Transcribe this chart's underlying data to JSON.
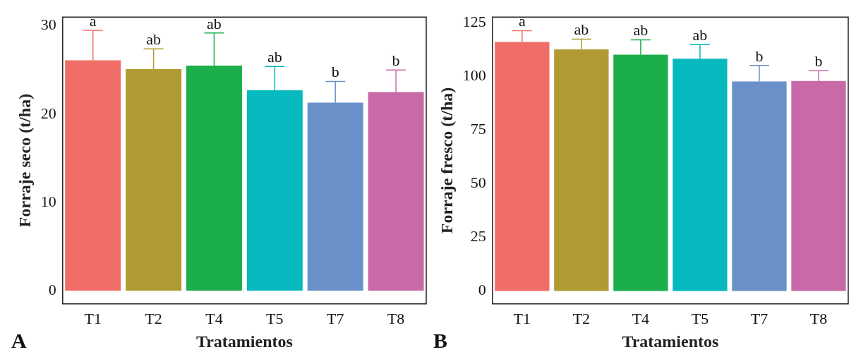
{
  "chart_data": [
    {
      "type": "bar",
      "ylabel": "Forraje seco (t/ha)",
      "xlabel": "Tratamientos",
      "categories": [
        "T1",
        "T2",
        "T4",
        "T5",
        "T7",
        "T8"
      ],
      "values": [
        26.1,
        25.1,
        25.5,
        22.7,
        21.3,
        22.5
      ],
      "colors": [
        "#f06e67",
        "#b09a33",
        "#1cae4a",
        "#05b9bf",
        "#6990c9",
        "#c86aa8"
      ],
      "errors": [
        [
          26.1,
          29.5
        ],
        [
          25.1,
          27.4
        ],
        [
          25.5,
          29.2
        ],
        [
          22.7,
          25.4
        ],
        [
          21.3,
          23.7
        ],
        [
          22.5,
          25.0
        ]
      ],
      "ylim": [
        -1.5,
        31
      ],
      "yticks": [
        0,
        10,
        20,
        30
      ],
      "grid": false,
      "legend": false,
      "annotations": [
        {
          "text": "a",
          "x": "T1",
          "y": 29.5
        },
        {
          "text": "ab",
          "x": "T2",
          "y": 27.4
        },
        {
          "text": "ab",
          "x": "T4",
          "y": 29.2
        },
        {
          "text": "ab",
          "x": "T5",
          "y": 25.4
        },
        {
          "text": "b",
          "x": "T7",
          "y": 23.7
        },
        {
          "text": "b",
          "x": "T8",
          "y": 25.0
        },
        "A"
      ]
    },
    {
      "type": "bar",
      "ylabel": "Forraje fresco (t/ha)",
      "xlabel": "Tratamientos",
      "categories": [
        "T1",
        "T2",
        "T4",
        "T5",
        "T7",
        "T8"
      ],
      "values": [
        115.9,
        112.5,
        110,
        108.1,
        97.5,
        97.8
      ],
      "colors": [
        "#f06e67",
        "#b09a33",
        "#1cae4a",
        "#05b9bf",
        "#6990c9",
        "#c86aa8"
      ],
      "errors": [
        [
          115.9,
          121.2
        ],
        [
          112.5,
          117.2
        ],
        [
          110,
          116.9
        ],
        [
          108.1,
          114.7
        ],
        [
          97.5,
          105
        ],
        [
          97.8,
          102.5
        ]
      ],
      "ylim": [
        -6,
        127.5
      ],
      "yticks": [
        0,
        25,
        50,
        75,
        100,
        125
      ],
      "grid": false,
      "legend": false,
      "annotations": [
        {
          "text": "a",
          "x": "T1",
          "y": 121.2
        },
        {
          "text": "ab",
          "x": "T2",
          "y": 117.2
        },
        {
          "text": "ab",
          "x": "T4",
          "y": 116.9
        },
        {
          "text": "ab",
          "x": "T5",
          "y": 114.7
        },
        {
          "text": "b",
          "x": "T7",
          "y": 105
        },
        {
          "text": "b",
          "x": "T8",
          "y": 102.5
        },
        "B"
      ]
    }
  ]
}
